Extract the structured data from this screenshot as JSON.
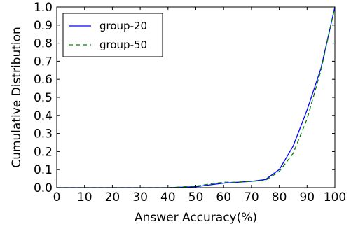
{
  "chart_data": {
    "type": "line",
    "title": "",
    "xlabel": "Answer Accuracy(%)",
    "ylabel": "Cumulative Distribution",
    "xlim": [
      0,
      100
    ],
    "ylim": [
      0.0,
      1.0
    ],
    "xticks": [
      "0",
      "10",
      "20",
      "30",
      "40",
      "50",
      "60",
      "70",
      "80",
      "90",
      "100"
    ],
    "yticks": [
      "0.0",
      "0.1",
      "0.2",
      "0.3",
      "0.4",
      "0.5",
      "0.6",
      "0.7",
      "0.8",
      "0.9",
      "1.0"
    ],
    "grid": false,
    "legend_position": "top-left",
    "series": [
      {
        "name": "group-20",
        "color": "#0000ff",
        "dash": "solid",
        "x": [
          0,
          40,
          50,
          55,
          60,
          65,
          70,
          75,
          80,
          85,
          90,
          95,
          100
        ],
        "y": [
          0.0,
          0.0,
          0.005,
          0.015,
          0.025,
          0.03,
          0.035,
          0.045,
          0.1,
          0.23,
          0.43,
          0.66,
          1.0
        ]
      },
      {
        "name": "group-50",
        "color": "#008000",
        "dash": "dashed",
        "x": [
          0,
          40,
          50,
          55,
          60,
          65,
          70,
          75,
          80,
          85,
          90,
          95,
          100
        ],
        "y": [
          0.0,
          0.0,
          0.008,
          0.02,
          0.03,
          0.03,
          0.035,
          0.04,
          0.09,
          0.19,
          0.38,
          0.65,
          1.0
        ]
      }
    ]
  }
}
